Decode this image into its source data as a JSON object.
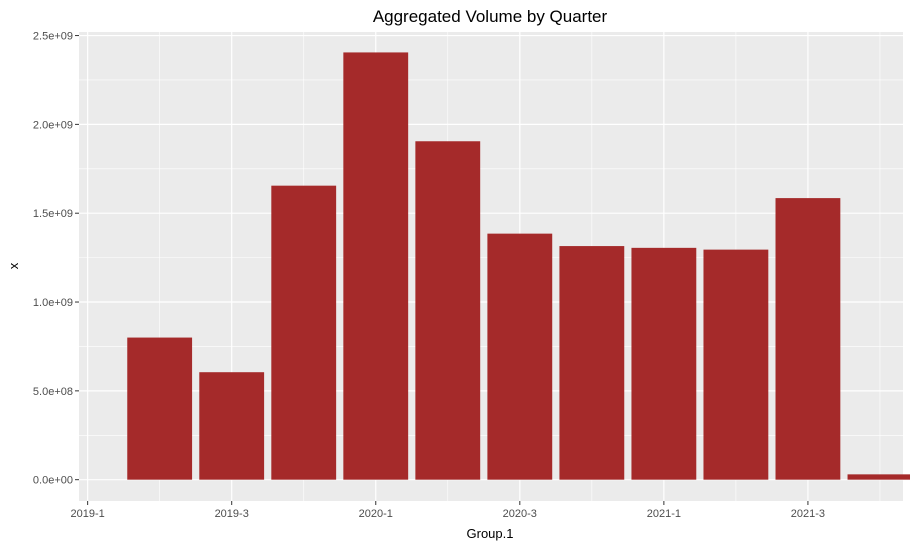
{
  "chart_data": {
    "type": "bar",
    "title": "Aggregated Volume by Quarter",
    "xlabel": "Group.1",
    "ylabel": "x",
    "x": [
      2019.25,
      2019.5,
      2019.75,
      2020.0,
      2020.25,
      2020.5,
      2020.75,
      2021.0,
      2021.25,
      2021.5,
      2021.75
    ],
    "values": [
      800000000,
      605000000,
      1655000000,
      2405000000,
      1905000000,
      1385000000,
      1315000000,
      1305000000,
      1295000000,
      1585000000,
      30000000
    ],
    "bar_color": "#A52A2A",
    "xlim": [
      2018.97,
      2021.83
    ],
    "ylim": [
      -120000000,
      2520000000
    ],
    "xticks": [
      {
        "value": 2019.0,
        "label": "2019-1"
      },
      {
        "value": 2019.5,
        "label": "2019-3"
      },
      {
        "value": 2020.0,
        "label": "2020-1"
      },
      {
        "value": 2020.5,
        "label": "2020-3"
      },
      {
        "value": 2021.0,
        "label": "2021-1"
      },
      {
        "value": 2021.5,
        "label": "2021-3"
      }
    ],
    "yticks": [
      {
        "value": 0,
        "label": "0.0e+00"
      },
      {
        "value": 500000000,
        "label": "5.0e+08"
      },
      {
        "value": 1000000000,
        "label": "1.0e+09"
      },
      {
        "value": 1500000000,
        "label": "1.5e+09"
      },
      {
        "value": 2000000000,
        "label": "2.0e+09"
      },
      {
        "value": 2500000000,
        "label": "2.5e+09"
      }
    ],
    "grid": true,
    "panel_background": "#EBEBEB",
    "grid_color": "#FFFFFF"
  }
}
